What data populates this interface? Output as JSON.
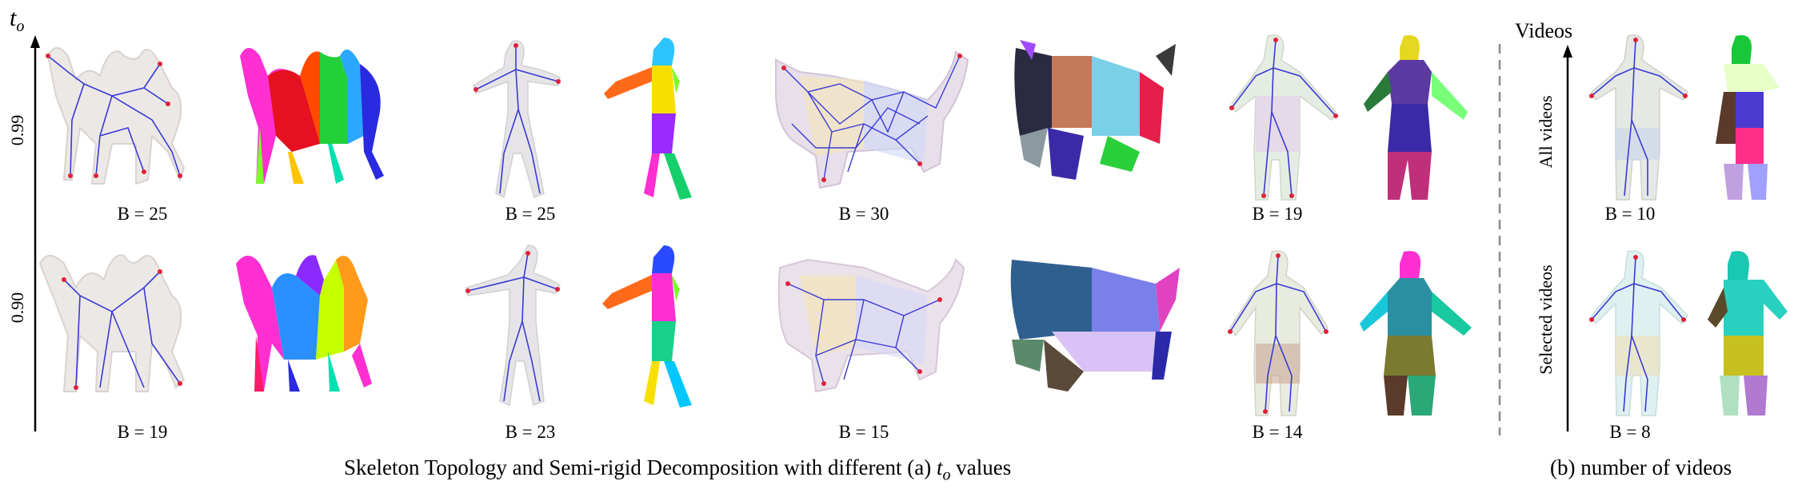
{
  "axis_a": {
    "var": "t",
    "sub": "o",
    "ticks": [
      "0.99",
      "0.90"
    ]
  },
  "axis_b": {
    "title": "Videos",
    "ticks": [
      "All videos",
      "Selected videos"
    ]
  },
  "top_labels": [
    "B = 25",
    "B = 25",
    "B = 30",
    "B = 19",
    "B = 10"
  ],
  "bottom_labels": [
    "B = 19",
    "B = 23",
    "B = 15",
    "B = 14",
    "B = 8"
  ],
  "caption_a": {
    "prefix": "Skeleton Topology and Semi-rigid Decomposition with different (a) ",
    "var": "t",
    "sub": "o",
    "suffix": " values"
  },
  "caption_b": "(b) number of videos",
  "colors": {
    "skeleton": "#3a3ad6",
    "joint": "#e0213a",
    "mesh": "#e8e4e2"
  }
}
